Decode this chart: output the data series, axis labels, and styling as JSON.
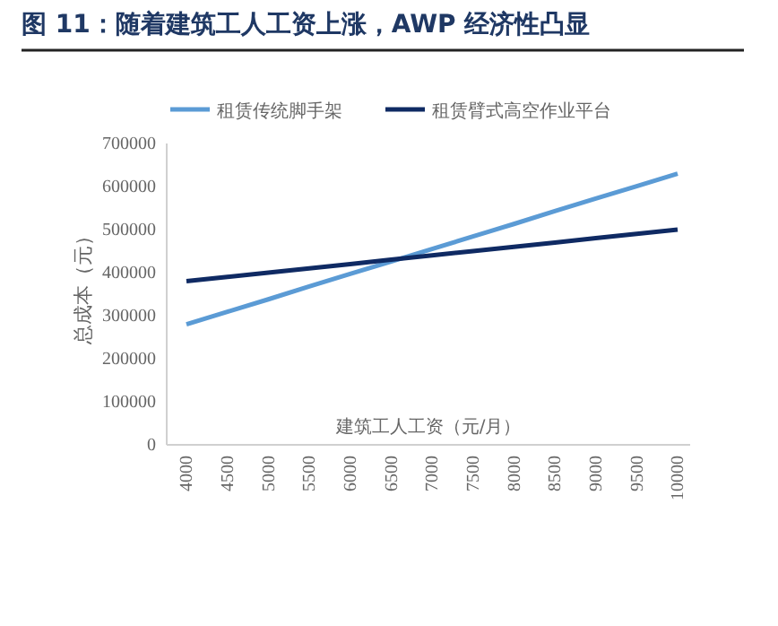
{
  "chart_data": {
    "type": "line",
    "title": "图 11：随着建筑工人工资上涨，AWP 经济性凸显",
    "xlabel": "建筑工人工资（元/月）",
    "ylabel": "总成本（元）",
    "categories": [
      "4000",
      "4500",
      "5000",
      "5500",
      "6000",
      "6500",
      "7000",
      "7500",
      "8000",
      "8500",
      "9000",
      "9500",
      "10000"
    ],
    "series": [
      {
        "name": "租赁传统脚手架",
        "color": "#5b9bd5",
        "values": [
          280000,
          309000,
          338000,
          368000,
          397000,
          426000,
          455000,
          484000,
          513000,
          543000,
          572000,
          601000,
          630000
        ]
      },
      {
        "name": "租赁臂式高空作业平台",
        "color": "#0f2a63",
        "values": [
          380000,
          390000,
          400000,
          410000,
          420000,
          430000,
          440000,
          450000,
          460000,
          470000,
          480000,
          490000,
          500000
        ]
      }
    ],
    "ylim": [
      0,
      700000
    ],
    "yticks": [
      0,
      100000,
      200000,
      300000,
      400000,
      500000,
      600000,
      700000
    ],
    "grid": false,
    "legend": "top",
    "marker": "none",
    "line_style": "solid"
  }
}
